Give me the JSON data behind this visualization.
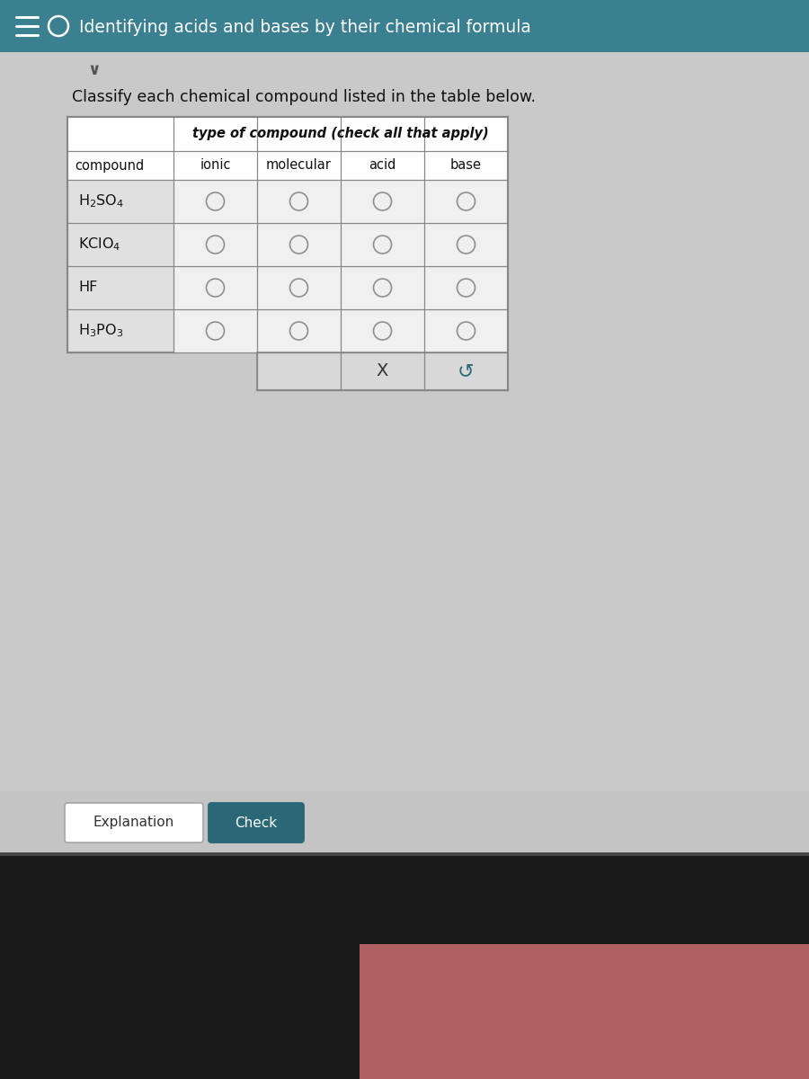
{
  "title": "Identifying acids and bases by their chemical formula",
  "instruction": "Classify each chemical compound listed in the table below.",
  "col_headers": [
    "ionic",
    "molecular",
    "acid",
    "base"
  ],
  "header_main": "type of compound ",
  "header_main_italic": "(check all that apply)",
  "compound_col": "compound",
  "bg_main": "#c8c8c8",
  "bg_dark_bottom": "#111111",
  "bg_pink_area": "#c87070",
  "header_teal": "#3a8090",
  "table_white": "#ffffff",
  "table_compound_bg": "#e0e0e0",
  "table_data_bg": "#f0f0f0",
  "table_bottom_row_bg": "#e0e0e0",
  "circle_face": "#efefef",
  "circle_edge": "#909090",
  "btn_explanation_bg": "#ffffff",
  "btn_check_bg": "#2a6878",
  "btn_text_check": "#ffffff",
  "btn_text_expl": "#333333",
  "title_color": "#ffffff",
  "instruction_color": "#111111",
  "table_border": "#888888",
  "x_color": "#333333",
  "undo_color": "#2a6878"
}
